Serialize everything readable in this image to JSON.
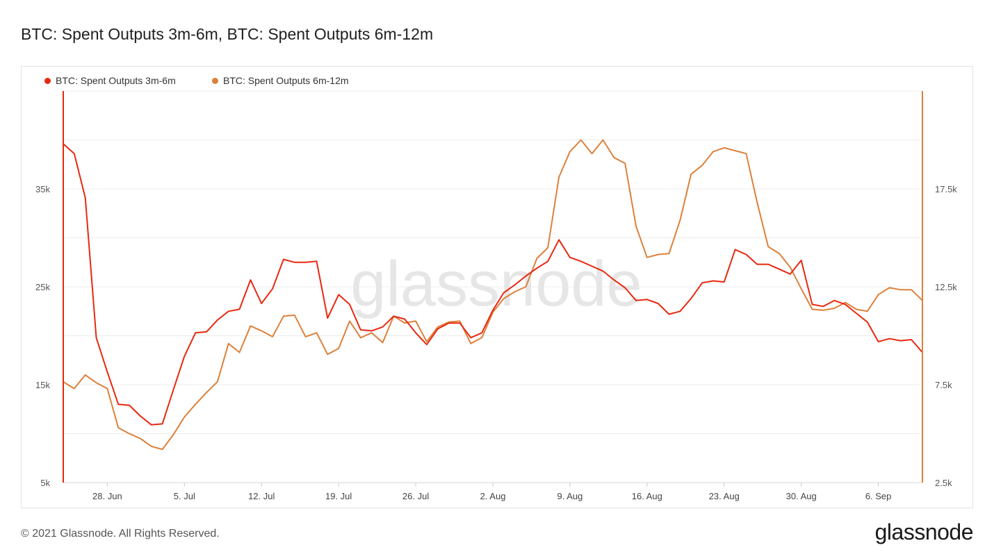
{
  "header": {
    "title": "BTC: Spent Outputs 3m-6m, BTC: Spent Outputs 6m-12m"
  },
  "footer": {
    "copyright": "© 2021 Glassnode. All Rights Reserved.",
    "brand": "glassnode"
  },
  "watermark": "glassnode",
  "chart_data": {
    "type": "line",
    "x": [
      "2021-06-24",
      "2021-06-25",
      "2021-06-26",
      "2021-06-27",
      "2021-06-28",
      "2021-06-29",
      "2021-06-30",
      "2021-07-01",
      "2021-07-02",
      "2021-07-03",
      "2021-07-04",
      "2021-07-05",
      "2021-07-06",
      "2021-07-07",
      "2021-07-08",
      "2021-07-09",
      "2021-07-10",
      "2021-07-11",
      "2021-07-12",
      "2021-07-13",
      "2021-07-14",
      "2021-07-15",
      "2021-07-16",
      "2021-07-17",
      "2021-07-18",
      "2021-07-19",
      "2021-07-20",
      "2021-07-21",
      "2021-07-22",
      "2021-07-23",
      "2021-07-24",
      "2021-07-25",
      "2021-07-26",
      "2021-07-27",
      "2021-07-28",
      "2021-07-29",
      "2021-07-30",
      "2021-07-31",
      "2021-08-01",
      "2021-08-02",
      "2021-08-03",
      "2021-08-04",
      "2021-08-05",
      "2021-08-06",
      "2021-08-07",
      "2021-08-08",
      "2021-08-09",
      "2021-08-10",
      "2021-08-11",
      "2021-08-12",
      "2021-08-13",
      "2021-08-14",
      "2021-08-15",
      "2021-08-16",
      "2021-08-17",
      "2021-08-18",
      "2021-08-19",
      "2021-08-20",
      "2021-08-21",
      "2021-08-22",
      "2021-08-23",
      "2021-08-24",
      "2021-08-25",
      "2021-08-26",
      "2021-08-27",
      "2021-08-28",
      "2021-08-29",
      "2021-08-30",
      "2021-08-31",
      "2021-09-01",
      "2021-09-02",
      "2021-09-03",
      "2021-09-04",
      "2021-09-05",
      "2021-09-06",
      "2021-09-07",
      "2021-09-08",
      "2021-09-09",
      "2021-09-10"
    ],
    "x_tick_labels": [
      "28. Jun",
      "5. Jul",
      "12. Jul",
      "19. Jul",
      "26. Jul",
      "2. Aug",
      "9. Aug",
      "16. Aug",
      "23. Aug",
      "30. Aug",
      "6. Sep"
    ],
    "y_left": {
      "ticks": [
        5000,
        15000,
        25000,
        35000
      ],
      "tick_labels": [
        "5k",
        "15k",
        "25k",
        "35k"
      ],
      "range": [
        5000,
        45000
      ]
    },
    "y_right": {
      "ticks": [
        2500,
        7500,
        12500,
        17500
      ],
      "tick_labels": [
        "2.5k",
        "7.5k",
        "12.5k",
        "17.5k"
      ],
      "range": [
        2500,
        22500
      ]
    },
    "grid": true,
    "legend_position": "top-left",
    "series": [
      {
        "name": "BTC: Spent Outputs 3m-6m",
        "axis": "left",
        "color": "#e8280f",
        "values": [
          39600,
          38600,
          34100,
          19800,
          16300,
          13000,
          12900,
          11800,
          10900,
          11000,
          14500,
          17900,
          20300,
          20400,
          21600,
          22500,
          22700,
          25700,
          23300,
          24800,
          27800,
          27500,
          27500,
          27600,
          21800,
          24200,
          23200,
          20600,
          20500,
          20900,
          22000,
          21700,
          20300,
          19100,
          20700,
          21300,
          21300,
          19800,
          20300,
          22600,
          24400,
          25200,
          26100,
          26900,
          27600,
          29800,
          28000,
          27600,
          27100,
          26600,
          25700,
          24900,
          23600,
          23700,
          23300,
          22200,
          22500,
          23800,
          25400,
          25600,
          25500,
          28800,
          28300,
          27300,
          27300,
          26800,
          26300,
          27700,
          23200,
          23000,
          23600,
          23200,
          22300,
          21400,
          19400,
          19700,
          19500,
          19600,
          18300
        ]
      },
      {
        "name": "BTC: Spent Outputs 6m-12m",
        "axis": "right",
        "color": "#dc803a",
        "values": [
          7650,
          7300,
          8000,
          7600,
          7300,
          5300,
          5000,
          4750,
          4350,
          4200,
          4950,
          5850,
          6500,
          7100,
          7650,
          9600,
          9150,
          10500,
          10250,
          9950,
          11000,
          11050,
          9950,
          10150,
          9050,
          9350,
          10750,
          9900,
          10150,
          9650,
          11000,
          10650,
          10750,
          9700,
          10450,
          10700,
          10750,
          9600,
          9900,
          11200,
          11900,
          12250,
          12500,
          13950,
          14500,
          18100,
          19400,
          20000,
          19300,
          20000,
          19100,
          18800,
          15600,
          14000,
          14150,
          14200,
          15900,
          18250,
          18700,
          19400,
          19600,
          19450,
          19300,
          16800,
          14550,
          14200,
          13500,
          12400,
          11350,
          11300,
          11400,
          11700,
          11350,
          11250,
          12100,
          12450,
          12350,
          12350,
          11800
        ]
      }
    ]
  }
}
